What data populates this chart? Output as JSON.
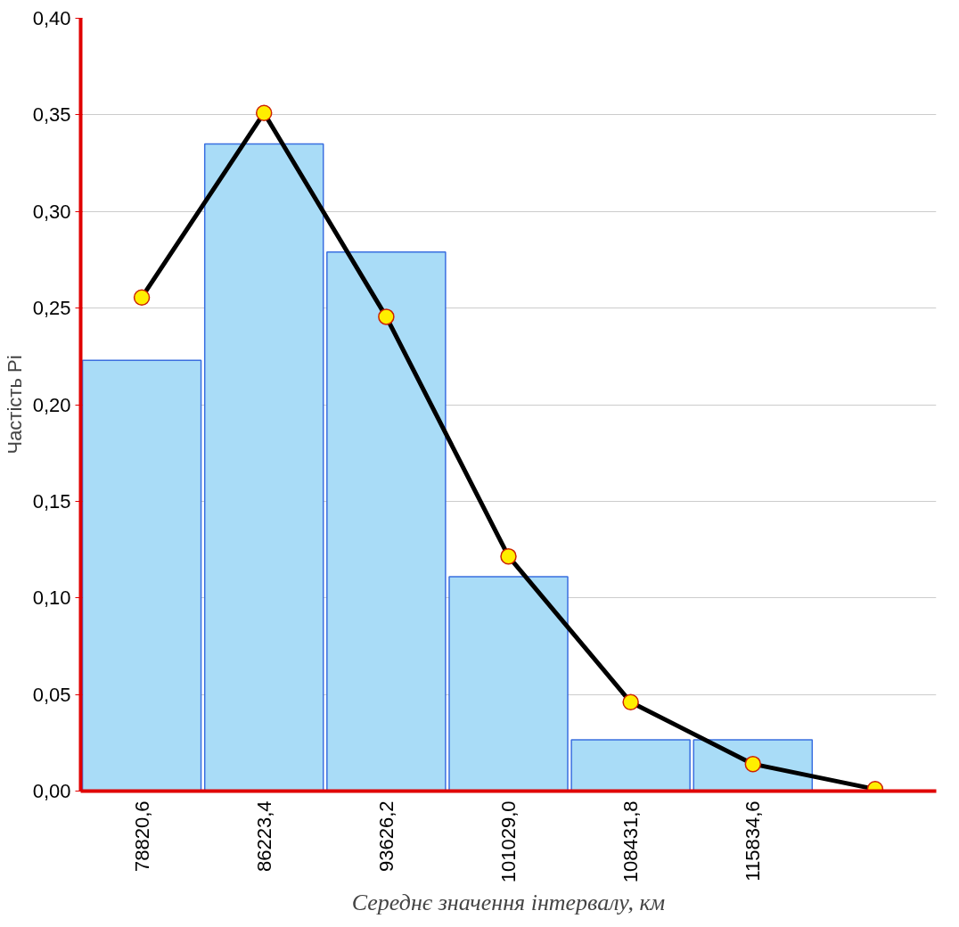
{
  "chart_data": {
    "type": "bar",
    "xlabel": "Середнє значення інтервалу, км",
    "ylabel": "Частість Pi",
    "categories": [
      "78820,6",
      "86223,4",
      "93626,2",
      "101029,0",
      "108431,8",
      "115834,6",
      null
    ],
    "series": [
      {
        "color": "#a9dcf7",
        "values": [
          0.223,
          0.335,
          0.279,
          0.111,
          0.0265,
          0.0265,
          null
        ]
      },
      {
        "type": "line",
        "color": "#000000",
        "marker": "circle",
        "values": [
          0.2555,
          0.351,
          0.2455,
          0.1215,
          0.046,
          0.014,
          0.001
        ]
      }
    ],
    "ylim": [
      0,
      0.4
    ],
    "yticks": [
      {
        "value": 0,
        "label": "0,00"
      },
      {
        "value": 0.05,
        "label": "0,05"
      },
      {
        "value": 0.1,
        "label": "0,10"
      },
      {
        "value": 0.15,
        "label": "0,15"
      },
      {
        "value": 0.2,
        "label": "0,20"
      },
      {
        "value": 0.25,
        "label": "0,25"
      },
      {
        "value": 0.3,
        "label": "0,30"
      },
      {
        "value": 0.35,
        "label": "0,35"
      },
      {
        "value": 0.4,
        "label": "0,40"
      }
    ],
    "grid": "y"
  }
}
